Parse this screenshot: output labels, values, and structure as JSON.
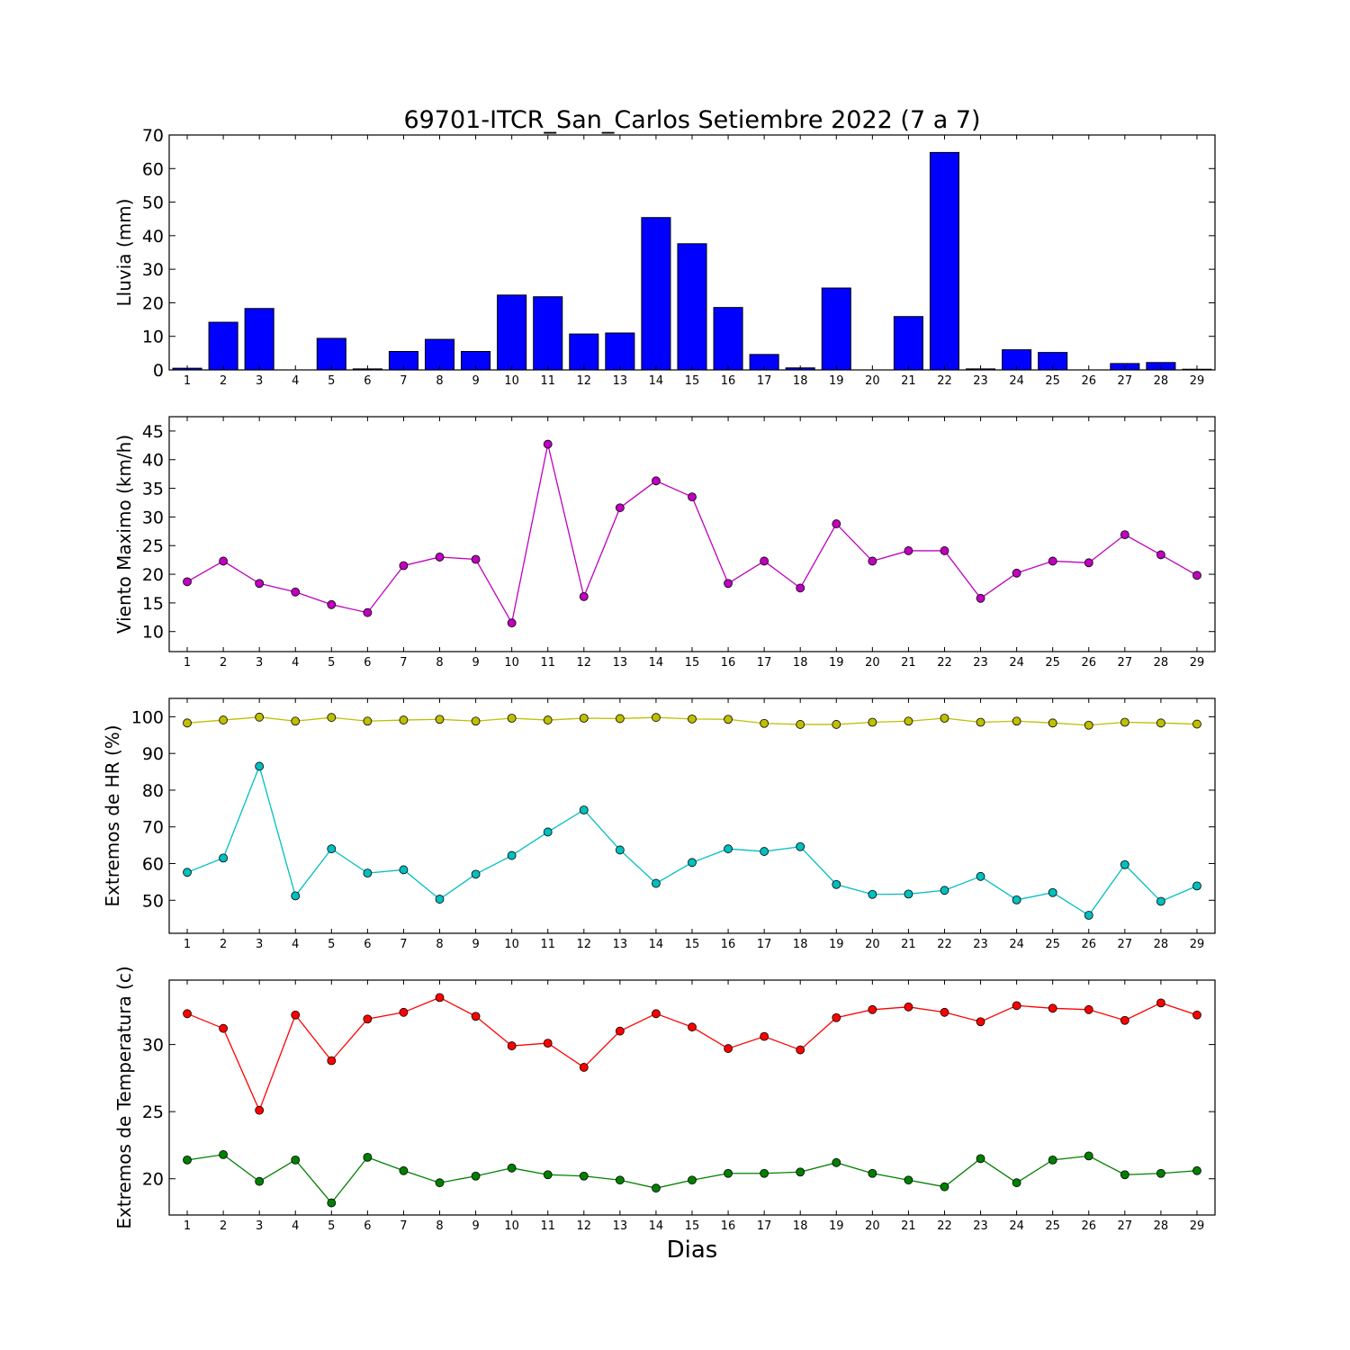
{
  "figure": {
    "title": "69701-ITCR_San_Carlos Setiembre 2022  (7 a 7)",
    "xlabel": "Dias"
  },
  "chart_data": [
    {
      "type": "bar",
      "ylabel": "Lluvia (mm)",
      "ylim": [
        0,
        70
      ],
      "yticks": [
        0,
        10,
        20,
        30,
        40,
        50,
        60,
        70
      ],
      "xlim": [
        0.5,
        29.5
      ],
      "grid": false,
      "x": [
        1,
        2,
        3,
        4,
        5,
        6,
        7,
        8,
        9,
        10,
        11,
        12,
        13,
        14,
        15,
        16,
        17,
        18,
        19,
        20,
        21,
        22,
        23,
        24,
        25,
        26,
        27,
        28,
        29
      ],
      "series": [
        {
          "color": "#0000ff",
          "values": [
            0.5,
            14.2,
            18.3,
            0.0,
            9.4,
            0.3,
            5.5,
            9.1,
            5.5,
            22.3,
            21.8,
            10.7,
            11.0,
            45.4,
            37.6,
            18.6,
            4.6,
            0.6,
            24.4,
            0.0,
            15.9,
            64.8,
            0.3,
            6.0,
            5.2,
            0.0,
            1.9,
            2.2,
            0.2
          ]
        }
      ]
    },
    {
      "type": "line",
      "ylabel": "Viento Maximo (km/h)",
      "ylim": [
        6.5,
        47.5
      ],
      "yticks": [
        10,
        15,
        20,
        25,
        30,
        35,
        40,
        45
      ],
      "xlim": [
        0.5,
        29.5
      ],
      "grid": false,
      "x": [
        1,
        2,
        3,
        4,
        5,
        6,
        7,
        8,
        9,
        10,
        11,
        12,
        13,
        14,
        15,
        16,
        17,
        18,
        19,
        20,
        21,
        22,
        23,
        24,
        25,
        26,
        27,
        28,
        29
      ],
      "series": [
        {
          "color": "#bf00bf",
          "values": [
            18.7,
            22.3,
            18.4,
            16.9,
            14.7,
            13.3,
            21.5,
            23.0,
            22.6,
            11.5,
            42.7,
            16.1,
            31.6,
            36.3,
            33.5,
            18.4,
            22.3,
            17.6,
            28.8,
            22.3,
            24.1,
            24.1,
            15.8,
            20.2,
            22.3,
            22.0,
            26.9,
            23.4,
            19.8
          ]
        }
      ]
    },
    {
      "type": "line",
      "ylabel": "Extremos de HR (%)",
      "ylim": [
        41,
        105
      ],
      "yticks": [
        50,
        60,
        70,
        80,
        90,
        100
      ],
      "xlim": [
        0.5,
        29.5
      ],
      "grid": false,
      "x": [
        1,
        2,
        3,
        4,
        5,
        6,
        7,
        8,
        9,
        10,
        11,
        12,
        13,
        14,
        15,
        16,
        17,
        18,
        19,
        20,
        21,
        22,
        23,
        24,
        25,
        26,
        27,
        28,
        29
      ],
      "series": [
        {
          "color": "#bfbf00",
          "values": [
            98.3,
            99.1,
            99.9,
            98.8,
            99.8,
            98.8,
            99.1,
            99.3,
            98.8,
            99.6,
            99.1,
            99.6,
            99.5,
            99.8,
            99.4,
            99.3,
            98.2,
            97.9,
            97.9,
            98.5,
            98.8,
            99.6,
            98.5,
            98.8,
            98.3,
            97.7,
            98.5,
            98.3,
            98.0
          ]
        },
        {
          "color": "#00bfbf",
          "values": [
            57.6,
            61.5,
            86.5,
            51.2,
            64.0,
            57.4,
            58.3,
            50.3,
            57.1,
            62.2,
            68.6,
            74.6,
            63.7,
            54.6,
            60.3,
            64.0,
            63.3,
            64.6,
            54.3,
            51.6,
            51.7,
            52.7,
            56.5,
            50.1,
            52.1,
            45.9,
            59.7,
            49.7,
            53.9
          ]
        }
      ]
    },
    {
      "type": "line",
      "ylabel": "Extremos de Temperatura (c)",
      "ylim": [
        17.3,
        34.8
      ],
      "yticks": [
        20,
        25,
        30
      ],
      "xlim": [
        0.5,
        29.5
      ],
      "grid": false,
      "x": [
        1,
        2,
        3,
        4,
        5,
        6,
        7,
        8,
        9,
        10,
        11,
        12,
        13,
        14,
        15,
        16,
        17,
        18,
        19,
        20,
        21,
        22,
        23,
        24,
        25,
        26,
        27,
        28,
        29
      ],
      "series": [
        {
          "color": "#ff0000",
          "values": [
            32.3,
            31.2,
            25.1,
            32.2,
            28.8,
            31.9,
            32.4,
            33.5,
            32.1,
            29.9,
            30.1,
            28.3,
            31.0,
            32.3,
            31.3,
            29.7,
            30.6,
            29.6,
            32.0,
            32.6,
            32.8,
            32.4,
            31.7,
            32.9,
            32.7,
            32.6,
            31.8,
            33.1,
            32.2
          ]
        },
        {
          "color": "#008000",
          "values": [
            21.4,
            21.8,
            19.8,
            21.4,
            18.2,
            21.6,
            20.6,
            19.7,
            20.2,
            20.8,
            20.3,
            20.2,
            19.9,
            19.3,
            19.9,
            20.4,
            20.4,
            20.5,
            21.2,
            20.4,
            19.9,
            19.4,
            21.5,
            19.7,
            21.4,
            21.7,
            20.3,
            20.4,
            20.6
          ]
        }
      ]
    }
  ]
}
